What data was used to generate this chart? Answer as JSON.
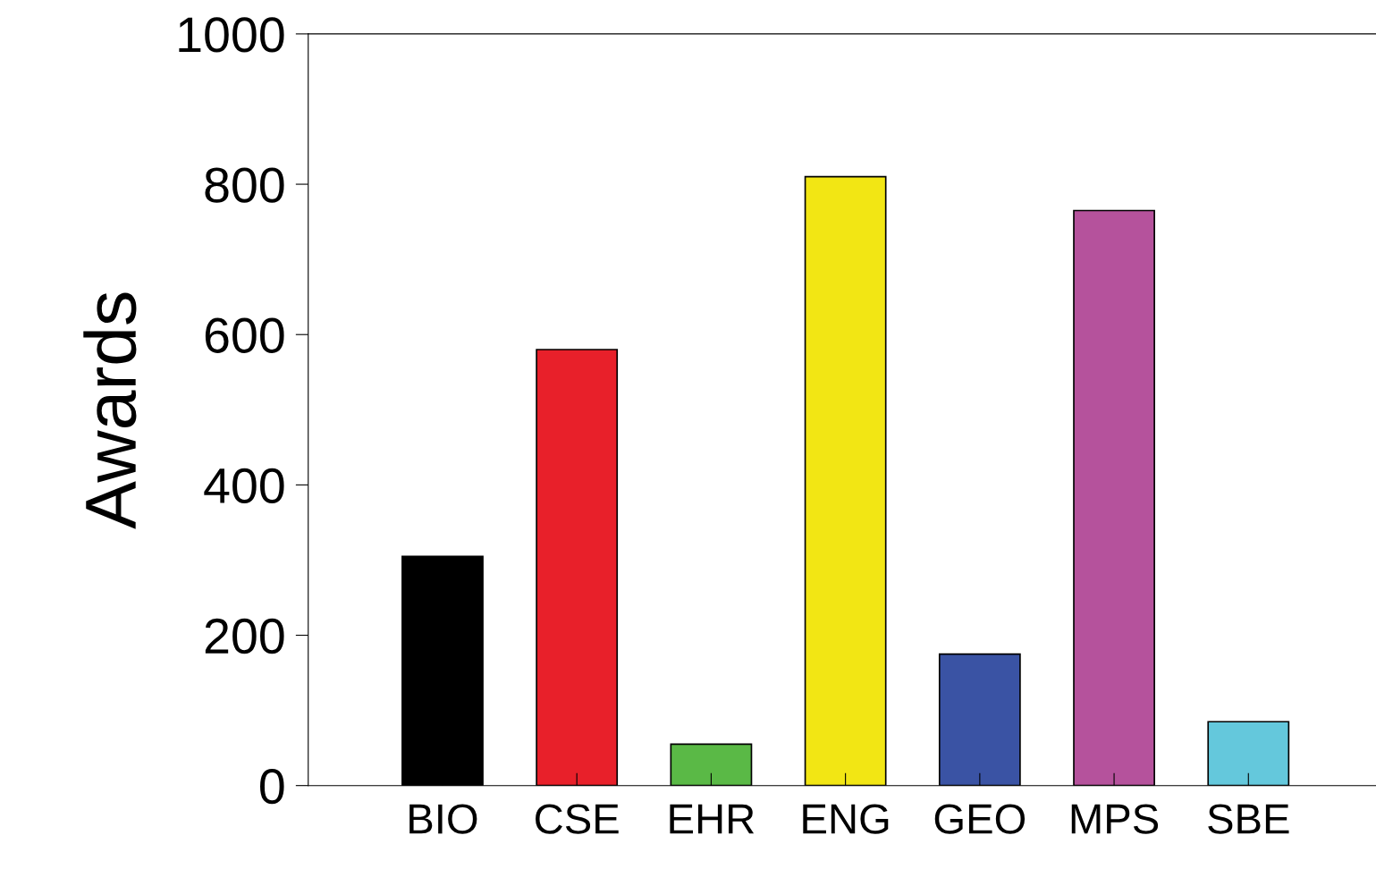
{
  "chart_data": {
    "type": "bar",
    "ylabel": "Awards",
    "categories": [
      "BIO",
      "CSE",
      "EHR",
      "ENG",
      "GEO",
      "MPS",
      "SBE"
    ],
    "values": [
      305,
      580,
      55,
      810,
      175,
      765,
      85
    ],
    "colors": [
      "#000000",
      "#e8202a",
      "#5ab946",
      "#f2e614",
      "#3a53a4",
      "#b5529c",
      "#64c8dc"
    ],
    "ylim": [
      0,
      1000
    ],
    "yticks": [
      0,
      200,
      400,
      600,
      800,
      1000
    ],
    "grid": false,
    "legend": false
  }
}
